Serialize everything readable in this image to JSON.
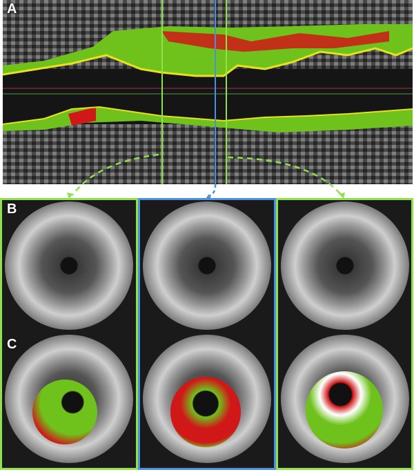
{
  "labels": {
    "a": "A",
    "b": "B",
    "c": "C"
  },
  "colors": {
    "selection_green": "#8fe24a",
    "selection_blue": "#4a8fe0",
    "fibrous": "#6fc21c",
    "necrotic": "#d01818",
    "calcium": "#ffffff",
    "lumen_border": "#e8e020"
  }
}
